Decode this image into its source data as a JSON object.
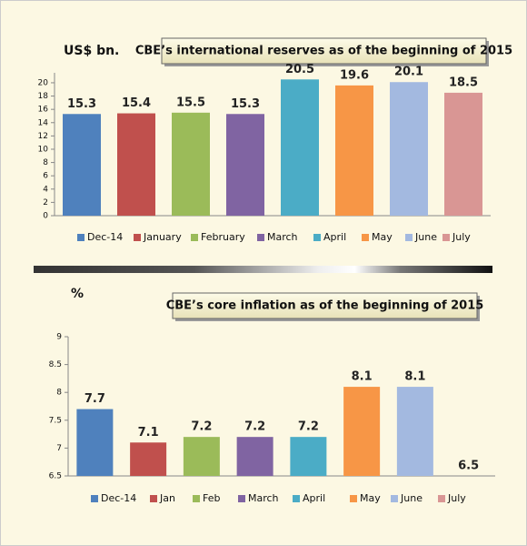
{
  "chart_data": [
    {
      "type": "bar",
      "title": "CBE’s international reserves as of the beginning of 2015",
      "y_label": "US$ bn.",
      "categories": [
        "Dec-14",
        "January",
        "February",
        "March",
        "April",
        "May",
        "June",
        "July"
      ],
      "values": [
        15.3,
        15.4,
        15.5,
        15.3,
        20.5,
        19.6,
        20.1,
        18.5
      ],
      "colors": [
        "#4f81bd",
        "#c0504d",
        "#9bbb59",
        "#8064a2",
        "#4bacc6",
        "#f79646",
        "#a3b9e0",
        "#d99694"
      ],
      "ylim": [
        0,
        21.5
      ],
      "yticks": [
        0,
        2,
        4,
        6,
        8,
        10,
        12,
        14,
        16,
        18,
        20
      ]
    },
    {
      "type": "bar",
      "title": "CBE’s core inflation as of the beginning of 2015",
      "y_label": "%",
      "categories": [
        "Dec-14",
        "Jan",
        "Feb",
        "March",
        "April",
        "May",
        "June",
        "July"
      ],
      "values": [
        7.7,
        7.1,
        7.2,
        7.2,
        7.2,
        8.1,
        8.1,
        6.5
      ],
      "colors": [
        "#4f81bd",
        "#c0504d",
        "#9bbb59",
        "#8064a2",
        "#4bacc6",
        "#f79646",
        "#a3b9e0",
        "#d99694"
      ],
      "ylim": [
        6.5,
        9
      ],
      "yticks": [
        6.5,
        7,
        7.5,
        8,
        8.5,
        9
      ]
    }
  ]
}
